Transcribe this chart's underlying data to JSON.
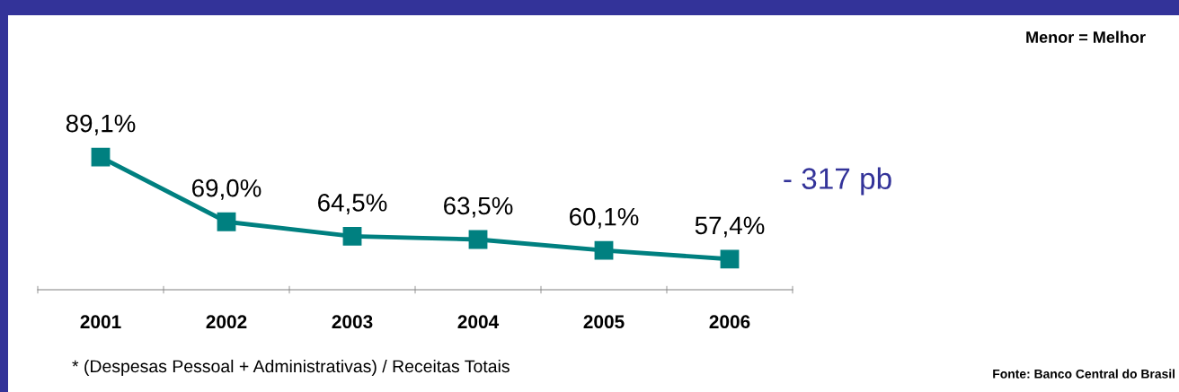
{
  "chart_data": {
    "type": "line",
    "categories": [
      "2001",
      "2002",
      "2003",
      "2004",
      "2005",
      "2006"
    ],
    "series": [
      {
        "color": "#008080",
        "values": [
          89.1,
          69.0,
          64.5,
          63.5,
          60.1,
          57.4
        ],
        "value_labels": [
          "89,1%",
          "69,0%",
          "64,5%",
          "63,5%",
          "60,1%",
          "57,4%"
        ]
      }
    ],
    "marker": "square",
    "line_style": "solid",
    "grid": false,
    "legend": false,
    "annotations": [
      "- 317 pb",
      "Menor = Melhor",
      "* (Despesas Pessoal + Administrativas) / Receitas Totais",
      "Fonte: Banco Central do Brasil"
    ]
  }
}
